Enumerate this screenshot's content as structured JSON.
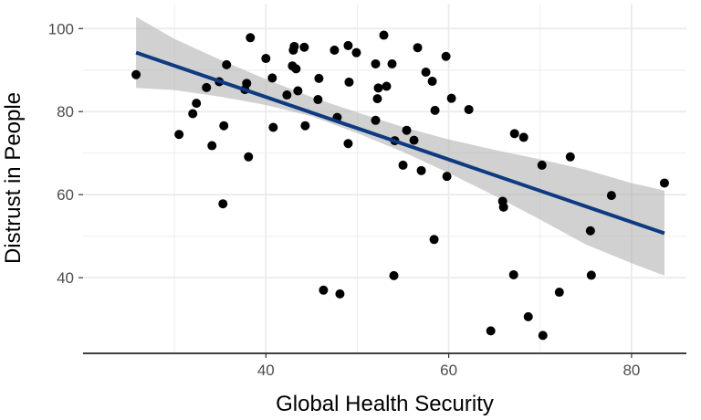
{
  "chart_data": {
    "type": "scatter",
    "xlabel": "Global Health Security",
    "ylabel": "Distrust in People",
    "xlim": [
      20,
      86
    ],
    "ylim": [
      22,
      106
    ],
    "x_ticks": [
      40,
      60,
      80
    ],
    "y_ticks": [
      40,
      60,
      80,
      100
    ],
    "x_minor": [
      30,
      50,
      70
    ],
    "y_minor": [
      50,
      70,
      90
    ],
    "grid": true,
    "colors": {
      "points": "#000000",
      "fit_line": "#0d3a80",
      "confidence_band": "#b3b3b3",
      "grid": "#ebebeb"
    },
    "points": [
      {
        "x": 25.8,
        "y": 88.9
      },
      {
        "x": 30.5,
        "y": 74.5
      },
      {
        "x": 32.0,
        "y": 79.5
      },
      {
        "x": 32.4,
        "y": 82.0
      },
      {
        "x": 33.5,
        "y": 85.8
      },
      {
        "x": 34.1,
        "y": 71.8
      },
      {
        "x": 34.9,
        "y": 87.2
      },
      {
        "x": 35.3,
        "y": 57.8
      },
      {
        "x": 35.4,
        "y": 76.6
      },
      {
        "x": 35.7,
        "y": 91.3
      },
      {
        "x": 37.7,
        "y": 85.3
      },
      {
        "x": 37.9,
        "y": 86.8
      },
      {
        "x": 38.1,
        "y": 69.1
      },
      {
        "x": 38.3,
        "y": 97.8
      },
      {
        "x": 40.0,
        "y": 92.8
      },
      {
        "x": 40.7,
        "y": 88.1
      },
      {
        "x": 40.8,
        "y": 76.2
      },
      {
        "x": 42.3,
        "y": 84.0
      },
      {
        "x": 42.9,
        "y": 91.0
      },
      {
        "x": 43.0,
        "y": 94.8
      },
      {
        "x": 43.1,
        "y": 95.7
      },
      {
        "x": 43.3,
        "y": 90.3
      },
      {
        "x": 43.5,
        "y": 85.0
      },
      {
        "x": 44.2,
        "y": 95.5
      },
      {
        "x": 44.3,
        "y": 76.6
      },
      {
        "x": 45.7,
        "y": 82.9
      },
      {
        "x": 45.8,
        "y": 88.0
      },
      {
        "x": 46.3,
        "y": 37.0
      },
      {
        "x": 47.5,
        "y": 94.8
      },
      {
        "x": 47.8,
        "y": 78.6
      },
      {
        "x": 48.1,
        "y": 36.1
      },
      {
        "x": 49.0,
        "y": 72.3
      },
      {
        "x": 49.0,
        "y": 95.9
      },
      {
        "x": 49.1,
        "y": 87.1
      },
      {
        "x": 49.9,
        "y": 94.2
      },
      {
        "x": 52.0,
        "y": 91.5
      },
      {
        "x": 52.0,
        "y": 77.9
      },
      {
        "x": 52.2,
        "y": 83.1
      },
      {
        "x": 52.3,
        "y": 85.7
      },
      {
        "x": 52.9,
        "y": 98.4
      },
      {
        "x": 53.2,
        "y": 86.1
      },
      {
        "x": 53.8,
        "y": 91.5
      },
      {
        "x": 54.0,
        "y": 40.5
      },
      {
        "x": 54.1,
        "y": 73.0
      },
      {
        "x": 55.0,
        "y": 67.1
      },
      {
        "x": 55.4,
        "y": 75.5
      },
      {
        "x": 56.2,
        "y": 73.1
      },
      {
        "x": 56.6,
        "y": 95.4
      },
      {
        "x": 57.0,
        "y": 65.8
      },
      {
        "x": 57.5,
        "y": 89.5
      },
      {
        "x": 58.2,
        "y": 87.3
      },
      {
        "x": 58.4,
        "y": 49.2
      },
      {
        "x": 58.5,
        "y": 80.3
      },
      {
        "x": 59.7,
        "y": 93.3
      },
      {
        "x": 59.8,
        "y": 64.4
      },
      {
        "x": 60.3,
        "y": 83.2
      },
      {
        "x": 62.2,
        "y": 80.5
      },
      {
        "x": 64.6,
        "y": 27.2
      },
      {
        "x": 65.9,
        "y": 58.4
      },
      {
        "x": 66.0,
        "y": 57.0
      },
      {
        "x": 67.1,
        "y": 40.7
      },
      {
        "x": 67.2,
        "y": 74.7
      },
      {
        "x": 68.2,
        "y": 73.8
      },
      {
        "x": 68.7,
        "y": 30.6
      },
      {
        "x": 70.2,
        "y": 67.1
      },
      {
        "x": 70.3,
        "y": 26.1
      },
      {
        "x": 72.1,
        "y": 36.5
      },
      {
        "x": 73.3,
        "y": 69.1
      },
      {
        "x": 75.5,
        "y": 51.3
      },
      {
        "x": 75.6,
        "y": 40.6
      },
      {
        "x": 77.8,
        "y": 59.8
      },
      {
        "x": 83.6,
        "y": 62.8
      }
    ],
    "fit_line": {
      "x": [
        25.8,
        83.6
      ],
      "y": [
        94.2,
        50.7
      ]
    },
    "confidence_band": [
      {
        "x": 25.8,
        "lower": 85.7,
        "upper": 102.8
      },
      {
        "x": 30.0,
        "lower": 85.2,
        "upper": 97.5
      },
      {
        "x": 35.0,
        "lower": 83.6,
        "upper": 92.5
      },
      {
        "x": 40.0,
        "lower": 81.6,
        "upper": 87.8
      },
      {
        "x": 45.0,
        "lower": 78.9,
        "upper": 83.5
      },
      {
        "x": 50.0,
        "lower": 74.8,
        "upper": 79.8
      },
      {
        "x": 55.0,
        "lower": 70.3,
        "upper": 76.3
      },
      {
        "x": 60.0,
        "lower": 65.2,
        "upper": 73.3
      },
      {
        "x": 65.0,
        "lower": 59.8,
        "upper": 70.8
      },
      {
        "x": 70.0,
        "lower": 54.0,
        "upper": 68.5
      },
      {
        "x": 75.0,
        "lower": 48.0,
        "upper": 66.0
      },
      {
        "x": 80.0,
        "lower": 43.5,
        "upper": 62.8
      },
      {
        "x": 83.6,
        "lower": 40.5,
        "upper": 61.0
      }
    ]
  }
}
